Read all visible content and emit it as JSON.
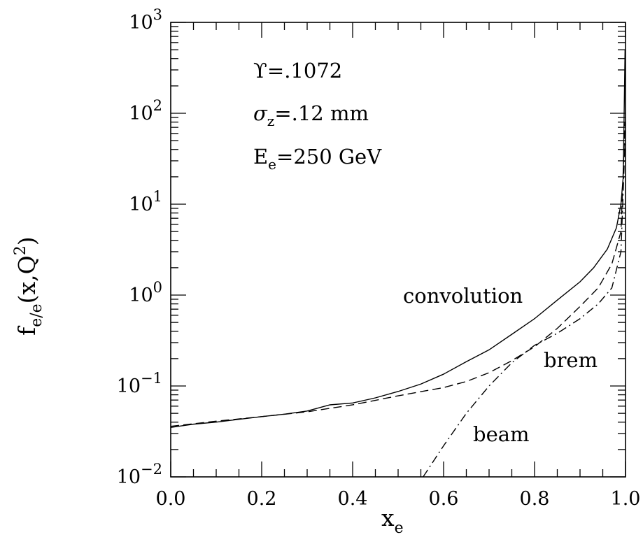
{
  "chart_data": {
    "type": "line",
    "title": "",
    "xlabel": "x",
    "xlabel_subscript": "e",
    "ylabel": "f",
    "ylabel_subscript": "e/e",
    "ylabel_tail": "(x,Q",
    "ylabel_superscript": "2",
    "ylabel_close": ")",
    "xlim": [
      0.0,
      1.0
    ],
    "ylim": [
      0.01,
      1000
    ],
    "yscale": "log",
    "grid": false,
    "x_ticks": [
      {
        "value": 0.0,
        "label": "0.0"
      },
      {
        "value": 0.2,
        "label": "0.2"
      },
      {
        "value": 0.4,
        "label": "0.4"
      },
      {
        "value": 0.6,
        "label": "0.6"
      },
      {
        "value": 0.8,
        "label": "0.8"
      },
      {
        "value": 1.0,
        "label": "1.0"
      }
    ],
    "y_ticks": [
      {
        "value": 0.01,
        "base": "10",
        "exp": "−2"
      },
      {
        "value": 0.1,
        "base": "10",
        "exp": "−1"
      },
      {
        "value": 1,
        "base": "10",
        "exp": "0"
      },
      {
        "value": 10,
        "base": "10",
        "exp": "1"
      },
      {
        "value": 100,
        "base": "10",
        "exp": "2"
      },
      {
        "value": 1000,
        "base": "10",
        "exp": "3"
      }
    ],
    "annotations": {
      "upsilon": "ϒ=.1072",
      "sigma_symbol": "σ",
      "sigma_sub": "z",
      "sigma_rest": "=.12 mm",
      "energy_symbol": "E",
      "energy_sub": "e",
      "energy_rest": "=250 GeV"
    },
    "series": [
      {
        "name": "convolution",
        "style": "solid",
        "x": [
          0.0,
          0.05,
          0.1,
          0.15,
          0.2,
          0.25,
          0.3,
          0.35,
          0.4,
          0.45,
          0.5,
          0.55,
          0.6,
          0.65,
          0.7,
          0.75,
          0.8,
          0.85,
          0.9,
          0.93,
          0.96,
          0.98,
          0.99,
          0.995,
          0.999
        ],
        "y": [
          0.035,
          0.038,
          0.04,
          0.043,
          0.046,
          0.049,
          0.053,
          0.062,
          0.065,
          0.074,
          0.087,
          0.105,
          0.135,
          0.185,
          0.25,
          0.37,
          0.55,
          0.88,
          1.4,
          2.0,
          3.2,
          5.5,
          10,
          20,
          500
        ]
      },
      {
        "name": "brem",
        "style": "dashed",
        "x": [
          0.0,
          0.1,
          0.2,
          0.3,
          0.4,
          0.5,
          0.6,
          0.65,
          0.7,
          0.75,
          0.8,
          0.85,
          0.9,
          0.94,
          0.97,
          0.99,
          0.999
        ],
        "y": [
          0.036,
          0.041,
          0.046,
          0.052,
          0.062,
          0.078,
          0.096,
          0.112,
          0.14,
          0.19,
          0.27,
          0.43,
          0.75,
          1.2,
          2.2,
          5.0,
          80
        ]
      },
      {
        "name": "beam",
        "style": "dashdot",
        "x": [
          0.555,
          0.6,
          0.65,
          0.7,
          0.75,
          0.8,
          0.85,
          0.9,
          0.94,
          0.97,
          0.99,
          0.999
        ],
        "y": [
          0.01,
          0.022,
          0.05,
          0.1,
          0.18,
          0.28,
          0.38,
          0.55,
          0.8,
          1.2,
          3.0,
          50
        ]
      }
    ],
    "series_labels": {
      "convolution": "convolution",
      "brem": "brem",
      "beam": "beam"
    }
  }
}
